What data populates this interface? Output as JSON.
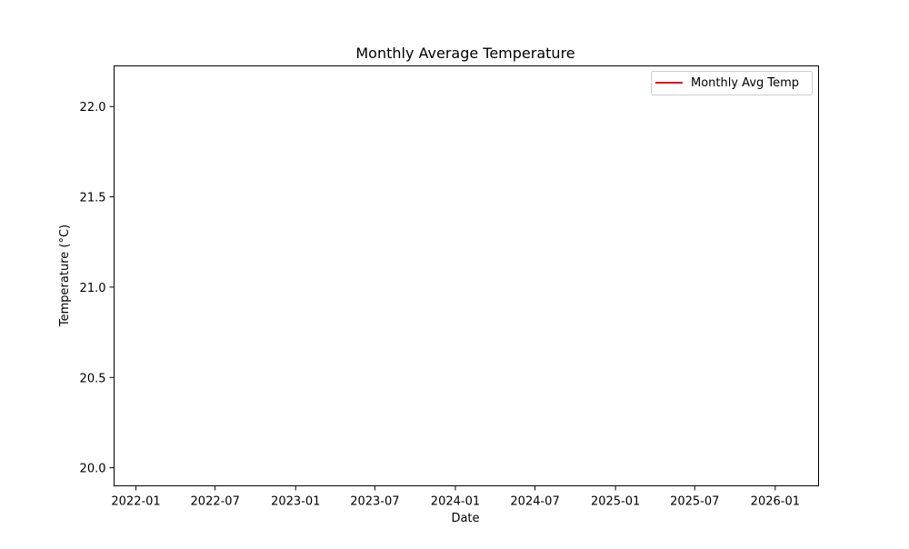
{
  "chart_data": {
    "type": "line",
    "title": "Monthly Average Temperature",
    "xlabel": "Date",
    "ylabel": "Temperature (°C)",
    "x_tick_labels": [
      "2022-01",
      "2022-07",
      "2023-01",
      "2023-07",
      "2024-01",
      "2024-07",
      "2025-01",
      "2025-07",
      "2026-01"
    ],
    "y_ticks": [
      20.0,
      20.5,
      21.0,
      21.5,
      22.0
    ],
    "xlim": [
      "2021-11-12",
      "2026-04-10"
    ],
    "ylim": [
      19.9,
      22.225
    ],
    "grid": false,
    "legend": {
      "location": "upper right"
    },
    "series": [
      {
        "name": "Monthly Avg Temp",
        "color": "#e8101a",
        "x": [],
        "y": []
      }
    ]
  }
}
